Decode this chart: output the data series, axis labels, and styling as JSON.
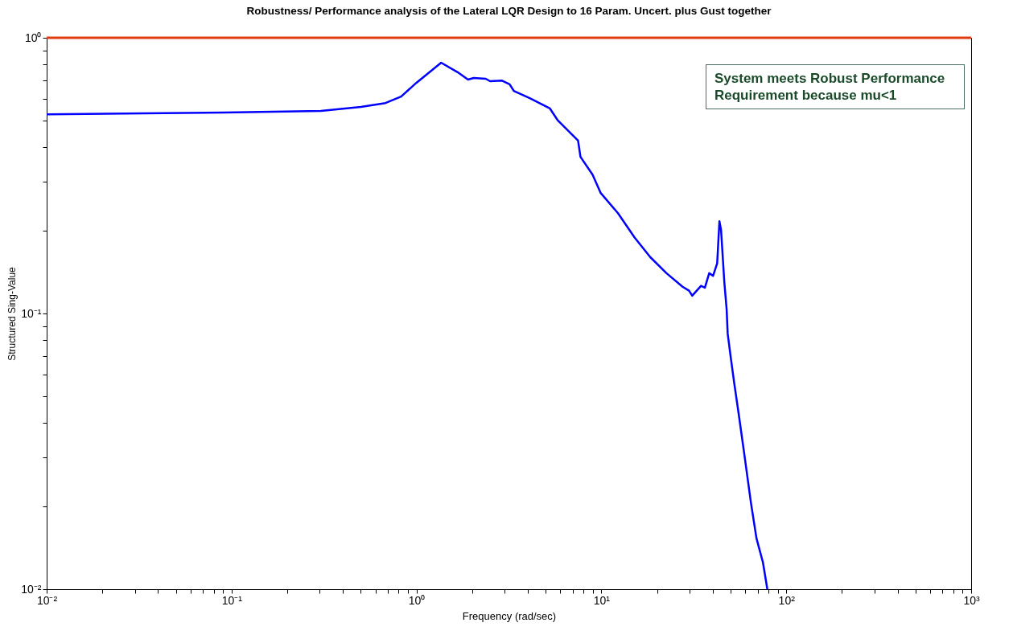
{
  "chart_data": {
    "type": "line",
    "title": "Robustness/ Performance analysis of the Lateral LQR Design to 16 Param. Uncert. plus Gust together",
    "xlabel": "Frequency (rad/sec)",
    "ylabel": "Structured Sing-Value",
    "log": "xy",
    "grid": false,
    "legend": false,
    "annotations": [
      "System meets Robust Performance Requirement because mu<1"
    ],
    "x": [
      0.01,
      0.0336,
      0.0914,
      0.304,
      0.501,
      0.68,
      0.826,
      1.0,
      1.36,
      1.67,
      1.9,
      2.04,
      2.37,
      2.5,
      2.89,
      3.19,
      3.36,
      4.1,
      5.27,
      5.82,
      7.48,
      7.71,
      8.96,
      9.9,
      12.3,
      15.1,
      18.4,
      22.5,
      27.5,
      29.8,
      31.0,
      34.6,
      36.3,
      38.3,
      40.2,
      42.3,
      43.5,
      44.4,
      46.2,
      47.6,
      48.2,
      50.1,
      52.2,
      55.3,
      58.9,
      64.4,
      69.0,
      74.8,
      79
    ],
    "series": [
      {
        "color": "#0000ff",
        "values": [
          0.528,
          0.532,
          0.536,
          0.543,
          0.561,
          0.58,
          0.612,
          0.687,
          0.812,
          0.75,
          0.705,
          0.715,
          0.71,
          0.696,
          0.7,
          0.678,
          0.642,
          0.604,
          0.554,
          0.501,
          0.424,
          0.37,
          0.319,
          0.274,
          0.231,
          0.189,
          0.16,
          0.14,
          0.125,
          0.121,
          0.116,
          0.126,
          0.124,
          0.14,
          0.137,
          0.152,
          0.216,
          0.201,
          0.131,
          0.1035,
          0.0846,
          0.0692,
          0.0565,
          0.0432,
          0.0319,
          0.0206,
          0.0153,
          0.0125,
          0.01
        ]
      }
    ],
    "ref_lines": [
      {
        "axis": "y",
        "value": 1,
        "color": "#e03c10"
      }
    ],
    "xlim": [
      0.01,
      1000
    ],
    "ylim": [
      0.01,
      1
    ],
    "xticks": [
      {
        "value": 0.01,
        "label": "10⁻²"
      },
      {
        "value": 0.02,
        "label": null
      },
      {
        "value": 0.03,
        "label": null
      },
      {
        "value": 0.04,
        "label": null
      },
      {
        "value": 0.05,
        "label": null
      },
      {
        "value": 0.06,
        "label": null
      },
      {
        "value": 0.07,
        "label": null
      },
      {
        "value": 0.08,
        "label": null
      },
      {
        "value": 0.09,
        "label": null
      },
      {
        "value": 0.1,
        "label": "10⁻¹"
      },
      {
        "value": 0.2,
        "label": null
      },
      {
        "value": 0.3,
        "label": null
      },
      {
        "value": 0.4,
        "label": null
      },
      {
        "value": 0.5,
        "label": null
      },
      {
        "value": 0.6,
        "label": null
      },
      {
        "value": 0.7,
        "label": null
      },
      {
        "value": 0.8,
        "label": null
      },
      {
        "value": 0.9,
        "label": null
      },
      {
        "value": 1,
        "label": "10⁰"
      },
      {
        "value": 2,
        "label": null
      },
      {
        "value": 3,
        "label": null
      },
      {
        "value": 4,
        "label": null
      },
      {
        "value": 5,
        "label": null
      },
      {
        "value": 6,
        "label": null
      },
      {
        "value": 7,
        "label": null
      },
      {
        "value": 8,
        "label": null
      },
      {
        "value": 9,
        "label": null
      },
      {
        "value": 10,
        "label": "10¹"
      },
      {
        "value": 20,
        "label": null
      },
      {
        "value": 30,
        "label": null
      },
      {
        "value": 40,
        "label": null
      },
      {
        "value": 50,
        "label": null
      },
      {
        "value": 60,
        "label": null
      },
      {
        "value": 70,
        "label": null
      },
      {
        "value": 80,
        "label": null
      },
      {
        "value": 90,
        "label": null
      },
      {
        "value": 100,
        "label": "10²"
      },
      {
        "value": 200,
        "label": null
      },
      {
        "value": 300,
        "label": null
      },
      {
        "value": 400,
        "label": null
      },
      {
        "value": 500,
        "label": null
      },
      {
        "value": 600,
        "label": null
      },
      {
        "value": 700,
        "label": null
      },
      {
        "value": 800,
        "label": null
      },
      {
        "value": 900,
        "label": null
      },
      {
        "value": 1000,
        "label": "10³"
      }
    ],
    "yticks": [
      {
        "value": 0.01,
        "label": "10⁻²"
      },
      {
        "value": 0.02,
        "label": null
      },
      {
        "value": 0.03,
        "label": null
      },
      {
        "value": 0.04,
        "label": null
      },
      {
        "value": 0.05,
        "label": null
      },
      {
        "value": 0.06,
        "label": null
      },
      {
        "value": 0.07,
        "label": null
      },
      {
        "value": 0.08,
        "label": null
      },
      {
        "value": 0.09,
        "label": null
      },
      {
        "value": 0.1,
        "label": "10⁻¹"
      },
      {
        "value": 0.2,
        "label": null
      },
      {
        "value": 0.3,
        "label": null
      },
      {
        "value": 0.4,
        "label": null
      },
      {
        "value": 0.5,
        "label": null
      },
      {
        "value": 0.6,
        "label": null
      },
      {
        "value": 0.7,
        "label": null
      },
      {
        "value": 0.8,
        "label": null
      },
      {
        "value": 0.9,
        "label": null
      },
      {
        "value": 1,
        "label": "10⁰"
      }
    ]
  }
}
